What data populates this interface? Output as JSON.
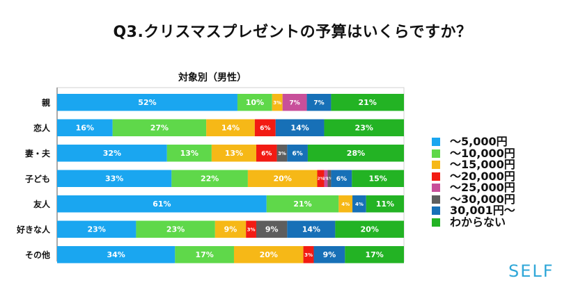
{
  "title": "Q3.クリスマスプレゼントの予算はいくらですか？",
  "subtitle": "対象別（男性）",
  "logo": "SELF",
  "colors": [
    "#1aa6f0",
    "#5fd84a",
    "#f6b817",
    "#f21b13",
    "#c84f9a",
    "#5e5e5e",
    "#1770b7",
    "#23b324"
  ],
  "chart_data": {
    "type": "bar",
    "orientation": "horizontal",
    "stacked": "100%",
    "categories": [
      "親",
      "恋人",
      "妻・夫",
      "子ども",
      "友人",
      "好きな人",
      "その他"
    ],
    "series": [
      {
        "name": "〜5,000円",
        "values": [
          52,
          16,
          32,
          33,
          61,
          23,
          34
        ],
        "labels": [
          "52%",
          "16%",
          "32%",
          "33%",
          "61%",
          "23%",
          "34%"
        ]
      },
      {
        "name": "〜10,000円",
        "values": [
          10,
          27,
          13,
          22,
          21,
          23,
          17
        ],
        "labels": [
          "10%",
          "27%",
          "13%",
          "22%",
          "21%",
          "23%",
          "17%"
        ]
      },
      {
        "name": "〜15,000円",
        "values": [
          3,
          14,
          13,
          20,
          4,
          9,
          20
        ],
        "labels": [
          "3%",
          "14%",
          "13%",
          "20%",
          "4%",
          "9%",
          "20%"
        ]
      },
      {
        "name": "〜20,000円",
        "values": [
          0,
          6,
          6,
          2,
          0,
          3,
          3
        ],
        "labels": [
          "",
          "6%",
          "6%",
          "2%",
          "",
          "3%",
          "3%"
        ]
      },
      {
        "name": "〜25,000円",
        "values": [
          7,
          0,
          0,
          1,
          0,
          0,
          0
        ],
        "labels": [
          "7%",
          "",
          "",
          "1%",
          "",
          "",
          ""
        ]
      },
      {
        "name": "〜30,000円",
        "values": [
          0,
          0,
          3,
          1,
          0,
          9,
          0
        ],
        "labels": [
          "",
          "",
          "3%",
          "1%",
          "",
          "9%",
          ""
        ]
      },
      {
        "name": "30,001円〜",
        "values": [
          7,
          14,
          6,
          6,
          4,
          14,
          9
        ],
        "labels": [
          "7%",
          "14%",
          "6%",
          "6%",
          "4%",
          "14%",
          "9%"
        ]
      },
      {
        "name": "わからない",
        "values": [
          21,
          23,
          28,
          15,
          11,
          20,
          17
        ],
        "labels": [
          "21%",
          "23%",
          "28%",
          "15%",
          "11%",
          "20%",
          "17%"
        ]
      }
    ]
  }
}
